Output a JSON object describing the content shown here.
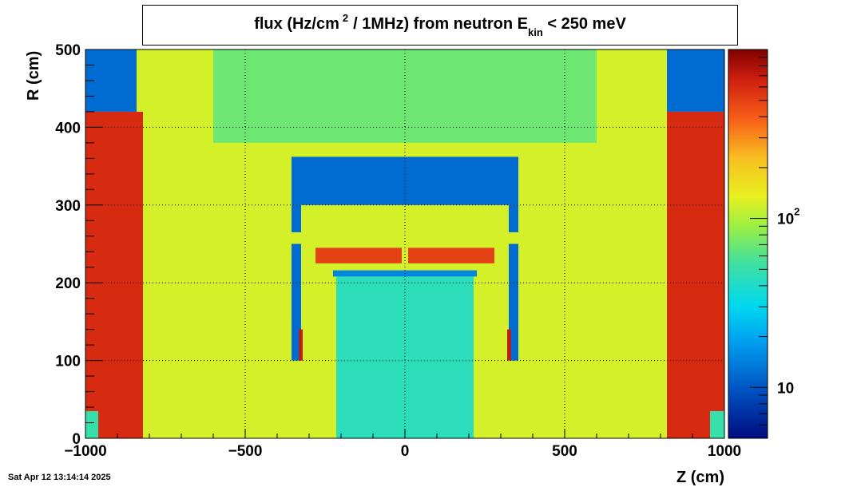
{
  "title": {
    "prefix": "flux (Hz/cm",
    "superscript": "2",
    "middle": "/ 1MHz) from   neutron  E",
    "subscript": "kin",
    "suffix": "< 250 meV"
  },
  "timestamp": "Sat Apr 12 13:14:14 2025",
  "chart_data": {
    "type": "heatmap",
    "xlabel": "Z (cm)",
    "ylabel": "R (cm)",
    "xlim": [
      -1000,
      1000
    ],
    "ylim": [
      0,
      500
    ],
    "x_ticks": [
      {
        "value": -1000,
        "label": "−1000"
      },
      {
        "value": -500,
        "label": "−500"
      },
      {
        "value": 0,
        "label": "0"
      },
      {
        "value": 500,
        "label": "500"
      },
      {
        "value": 1000,
        "label": "1000"
      }
    ],
    "y_ticks": [
      {
        "value": 0,
        "label": "0"
      },
      {
        "value": 100,
        "label": "100"
      },
      {
        "value": 200,
        "label": "200"
      },
      {
        "value": 300,
        "label": "300"
      },
      {
        "value": 400,
        "label": "400"
      },
      {
        "value": 500,
        "label": "500"
      }
    ],
    "grid": true,
    "colorbar": {
      "scale": "log",
      "range": [
        5,
        1000
      ],
      "tick_labels": [
        {
          "value": 10,
          "base": "10",
          "exp": ""
        },
        {
          "value": 100,
          "base": "10",
          "exp": "2"
        }
      ]
    },
    "regions": [
      {
        "name": "background",
        "zmin": -1000,
        "zmax": 1000,
        "rmin": 0,
        "rmax": 500,
        "value": 120
      },
      {
        "name": "upper-center",
        "zmin": -600,
        "zmax": 600,
        "rmin": 380,
        "rmax": 500,
        "value": 70
      },
      {
        "name": "left-wall",
        "zmin": -1000,
        "zmax": -820,
        "rmin": 0,
        "rmax": 420,
        "value": 600
      },
      {
        "name": "right-wall",
        "zmin": 820,
        "zmax": 1000,
        "rmin": 0,
        "rmax": 420,
        "value": 600
      },
      {
        "name": "left-corner",
        "zmin": -1000,
        "zmax": -840,
        "rmin": 420,
        "rmax": 500,
        "value": 12
      },
      {
        "name": "right-corner",
        "zmin": 820,
        "zmax": 1000,
        "rmin": 420,
        "rmax": 500,
        "value": 12
      },
      {
        "name": "left-bottom-corner",
        "zmin": -1000,
        "zmax": -960,
        "rmin": 0,
        "rmax": 35,
        "value": 50
      },
      {
        "name": "right-bottom-corner",
        "zmin": 955,
        "zmax": 1000,
        "rmin": 0,
        "rmax": 35,
        "value": 50
      },
      {
        "name": "top-shield",
        "zmin": -355,
        "zmax": 355,
        "rmin": 300,
        "rmax": 362,
        "value": 12
      },
      {
        "name": "left-shield-upper",
        "zmin": -355,
        "zmax": -325,
        "rmin": 265,
        "rmax": 300,
        "value": 12
      },
      {
        "name": "right-shield-upper",
        "zmin": 325,
        "zmax": 355,
        "rmin": 265,
        "rmax": 300,
        "value": 12
      },
      {
        "name": "left-shield-lower",
        "zmin": -355,
        "zmax": -325,
        "rmin": 100,
        "rmax": 250,
        "value": 12
      },
      {
        "name": "right-shield-lower",
        "zmin": 325,
        "zmax": 355,
        "rmin": 100,
        "rmax": 250,
        "value": 12
      },
      {
        "name": "inner-left-band",
        "zmin": -280,
        "zmax": -10,
        "rmin": 225,
        "rmax": 245,
        "value": 500
      },
      {
        "name": "inner-right-band",
        "zmin": 10,
        "zmax": 280,
        "rmin": 225,
        "rmax": 245,
        "value": 500
      },
      {
        "name": "inner-strip",
        "zmin": -225,
        "zmax": 225,
        "rmin": 208,
        "rmax": 216,
        "value": 15
      },
      {
        "name": "inner-core",
        "zmin": -215,
        "zmax": 215,
        "rmin": 0,
        "rmax": 208,
        "value": 45
      },
      {
        "name": "left-hot-spot",
        "zmin": -332,
        "zmax": -320,
        "rmin": 100,
        "rmax": 140,
        "value": 700
      },
      {
        "name": "right-hot-spot",
        "zmin": 320,
        "zmax": 332,
        "rmin": 100,
        "rmax": 140,
        "value": 700
      }
    ]
  }
}
